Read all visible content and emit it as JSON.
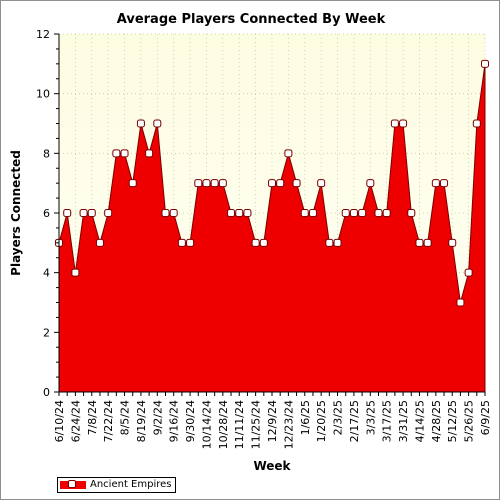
{
  "chart_data": {
    "type": "area",
    "title": "Average Players Connected By Week",
    "xlabel": "Week",
    "ylabel": "Players Connected",
    "ylim": [
      0,
      12
    ],
    "yticks": [
      0,
      2,
      4,
      6,
      8,
      10,
      12
    ],
    "grid": true,
    "legend_position": "bottom-left",
    "x": [
      "6/10/24",
      "6/17/24",
      "6/24/24",
      "7/1/24",
      "7/8/24",
      "7/15/24",
      "7/22/24",
      "7/29/24",
      "8/5/24",
      "8/12/24",
      "8/19/24",
      "8/26/24",
      "9/2/24",
      "9/9/24",
      "9/16/24",
      "9/23/24",
      "9/30/24",
      "10/7/24",
      "10/14/24",
      "10/21/24",
      "10/28/24",
      "11/4/24",
      "11/11/24",
      "11/18/24",
      "11/25/24",
      "12/2/24",
      "12/9/24",
      "12/16/24",
      "12/23/24",
      "12/30/24",
      "1/6/25",
      "1/13/25",
      "1/20/25",
      "1/27/25",
      "2/3/25",
      "2/10/25",
      "2/17/25",
      "2/24/25",
      "3/3/25",
      "3/10/25",
      "3/17/25",
      "3/24/25",
      "3/31/25",
      "4/7/25",
      "4/14/25",
      "4/21/25",
      "4/28/25",
      "5/5/25",
      "5/12/25",
      "5/19/25",
      "5/26/25",
      "6/2/25",
      "6/9/25"
    ],
    "x_tick_labels": [
      "6/10/24",
      "6/24/24",
      "7/8/24",
      "7/22/24",
      "8/5/24",
      "8/19/24",
      "9/2/24",
      "9/16/24",
      "9/30/24",
      "10/14/24",
      "10/28/24",
      "11/11/24",
      "11/25/24",
      "12/9/24",
      "12/23/24",
      "1/6/25",
      "1/20/25",
      "2/3/25",
      "2/17/25",
      "3/3/25",
      "3/17/25",
      "3/31/25",
      "4/14/25",
      "4/28/25",
      "5/12/25",
      "5/26/25",
      "6/9/25"
    ],
    "series": [
      {
        "name": "Ancient Empires",
        "color": "#ee0000",
        "values": [
          5,
          6,
          4,
          6,
          6,
          5,
          6,
          8,
          8,
          7,
          9,
          8,
          9,
          6,
          6,
          5,
          5,
          7,
          7,
          7,
          7,
          6,
          6,
          6,
          5,
          5,
          7,
          7,
          8,
          7,
          6,
          6,
          7,
          5,
          5,
          6,
          6,
          6,
          7,
          6,
          6,
          9,
          9,
          6,
          5,
          5,
          7,
          7,
          5,
          3,
          4,
          9,
          11
        ]
      }
    ]
  },
  "colors": {
    "plot_background_top": "#fdfde2",
    "plot_background_bottom": "#fefef6",
    "area_fill": "#ee0000",
    "area_outline": "#7a0000",
    "grid": "#c8c8a0"
  }
}
